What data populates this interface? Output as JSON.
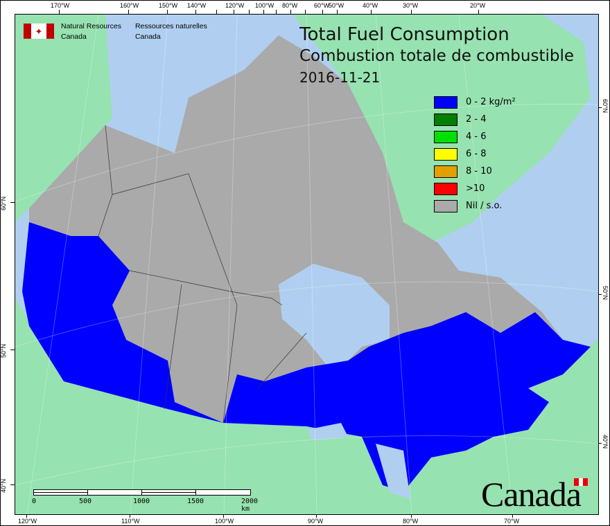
{
  "header": {
    "org_en_line1": "Natural Resources",
    "org_en_line2": "Canada",
    "org_fr_line1": "Ressources naturelles",
    "org_fr_line2": "Canada"
  },
  "title": {
    "en": "Total Fuel Consumption",
    "fr": "Combustion totale de combustible",
    "date": "2016-11-21"
  },
  "legend": [
    {
      "label": "0 - 2 kg/m²",
      "color": "#0000ff"
    },
    {
      "label": "2 - 4",
      "color": "#007f00"
    },
    {
      "label": "4 - 6",
      "color": "#00e000"
    },
    {
      "label": "6 - 8",
      "color": "#ffff00"
    },
    {
      "label": "8 - 10",
      "color": "#e0a000"
    },
    {
      "label": ">10",
      "color": "#ff0000"
    },
    {
      "label": "Nil / s.o.",
      "color": "#aaaaaa"
    }
  ],
  "graticule": {
    "top": [
      "170°W",
      "160°W",
      "150°W",
      "140°W",
      "",
      "120°W",
      "",
      "100°W",
      "",
      "80°W",
      "",
      "60°W",
      "50°W",
      "40°W",
      "30°W",
      "20°W"
    ],
    "bottom": [
      "120°W",
      "110°W",
      "100°W",
      "90°W",
      "80°W",
      "70°W"
    ],
    "left": [
      "60°N",
      "50°N",
      "40°N"
    ],
    "right": [
      "60°N",
      "50°N",
      "40°N"
    ]
  },
  "scalebar": {
    "labels": [
      "0",
      "500",
      "1000",
      "1500",
      "2000 km"
    ]
  },
  "wordmark": "Canada",
  "colors": {
    "ocean": "#b0cff0",
    "foreign_land": "#96e2b0",
    "no_data": "#aaaaaa",
    "fire": "#0000ff"
  }
}
